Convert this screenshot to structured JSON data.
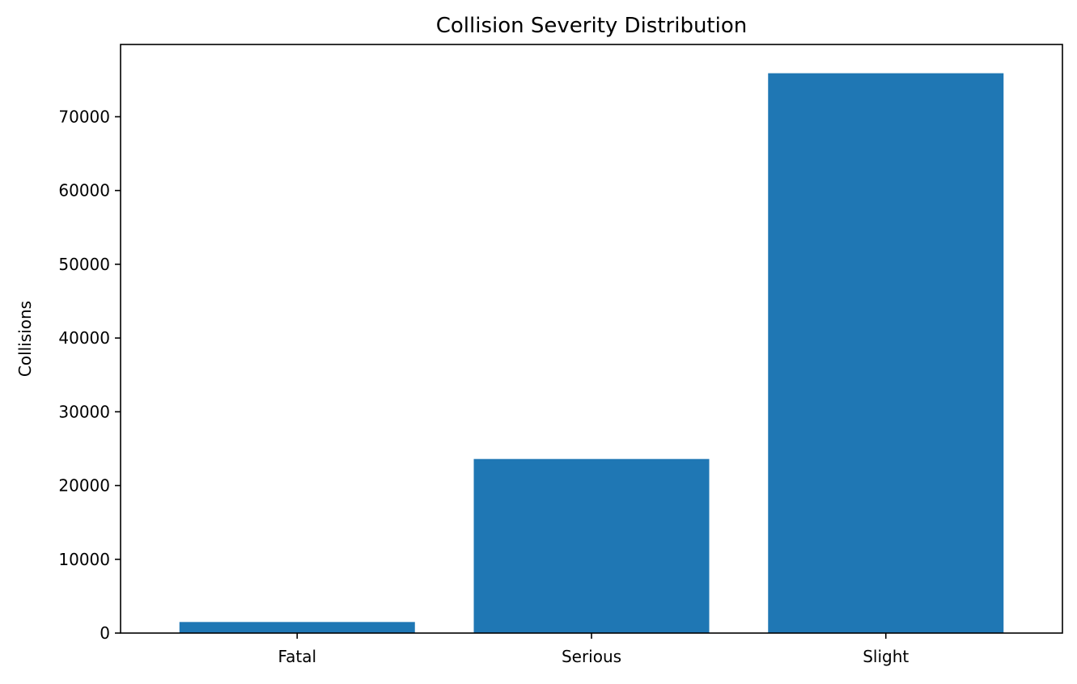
{
  "chart_data": {
    "type": "bar",
    "title": "Collision Severity Distribution",
    "xlabel": "",
    "ylabel": "Collisions",
    "categories": [
      "Fatal",
      "Serious",
      "Slight"
    ],
    "values": [
      1500,
      23600,
      75900
    ],
    "ylim": [
      0,
      79800
    ],
    "yticks": [
      0,
      10000,
      20000,
      30000,
      40000,
      50000,
      60000,
      70000
    ],
    "bar_color": "#1f77b4",
    "grid": false,
    "legend": "none"
  }
}
